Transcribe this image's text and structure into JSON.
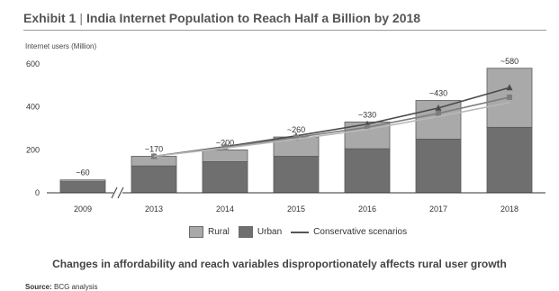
{
  "header": {
    "exhibit": "Exhibit 1",
    "separator": "|",
    "title": "India Internet Population to Reach Half a Billion by 2018"
  },
  "caption": "Changes in affordability and reach variables disproportionately affects rural user growth",
  "source": {
    "label": "Source:",
    "text": "BCG analysis"
  },
  "legend": {
    "rural": "Rural",
    "urban": "Urban",
    "conservative": "Conservative scenarios"
  },
  "colors": {
    "rural": "#a9a9a9",
    "urban": "#6f6f6f",
    "line1": "#4a4a4a",
    "line2": "#7d7d7d",
    "line3": "#b8b8b8"
  },
  "chart_data": {
    "type": "bar",
    "stacked": true,
    "ylabel": "Internet users (Million)",
    "ylim": [
      0,
      600
    ],
    "yticks": [
      0,
      200,
      400,
      600
    ],
    "categories": [
      "2009",
      "2013",
      "2014",
      "2015",
      "2016",
      "2017",
      "2018"
    ],
    "axis_break_after": "2009",
    "series": [
      {
        "name": "Urban",
        "values": [
          52,
          125,
          145,
          170,
          205,
          250,
          305
        ]
      },
      {
        "name": "Rural",
        "values": [
          8,
          45,
          55,
          90,
          125,
          180,
          275
        ]
      }
    ],
    "totals": [
      "~60",
      "~170",
      "~200",
      "~260",
      "~330",
      "~430",
      "~580"
    ],
    "lines": [
      {
        "name": "Conservative scenarios",
        "marker": "triangle",
        "x": [
          "2013",
          "2014",
          "2015",
          "2016",
          "2017",
          "2018"
        ],
        "values": [
          170,
          215,
          265,
          320,
          395,
          490
        ]
      },
      {
        "name": "",
        "marker": "square",
        "x": [
          "2013",
          "2014",
          "2015",
          "2016",
          "2017",
          "2018"
        ],
        "values": [
          170,
          212,
          258,
          305,
          370,
          445
        ]
      },
      {
        "name": "",
        "marker": "none",
        "x": [
          "2013",
          "2014",
          "2015",
          "2016",
          "2017",
          "2018"
        ],
        "values": [
          170,
          208,
          250,
          295,
          355,
          420
        ]
      }
    ]
  }
}
